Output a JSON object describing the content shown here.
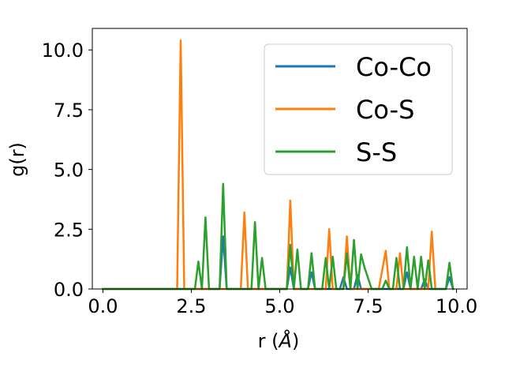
{
  "chart_data": {
    "type": "line",
    "xlabel_main": "r (",
    "xlabel_unit": "Å",
    "xlabel_close": ")",
    "ylabel": "g(r)",
    "xlim": [
      -0.3,
      10.3
    ],
    "ylim": [
      0,
      10.9
    ],
    "xticks": [
      0.0,
      2.5,
      5.0,
      7.5,
      10.0
    ],
    "xtick_labels": [
      "0.0",
      "2.5",
      "5.0",
      "7.5",
      "10.0"
    ],
    "yticks": [
      0.0,
      2.5,
      5.0,
      7.5,
      10.0
    ],
    "ytick_labels": [
      "0.0",
      "2.5",
      "5.0",
      "7.5",
      "10.0"
    ],
    "grid": false,
    "legend_position": "top-right",
    "series": [
      {
        "name": "Co-Co",
        "color": "#1f77b4",
        "x": [
          0.0,
          3.3,
          3.4,
          3.5,
          5.2,
          5.3,
          5.4,
          5.8,
          5.9,
          6.0,
          6.7,
          6.8,
          6.9,
          7.1,
          7.2,
          7.3,
          8.5,
          8.6,
          8.7,
          9.0,
          9.1,
          9.2,
          9.7,
          9.8,
          9.9
        ],
        "y": [
          0.0,
          0.0,
          2.2,
          0.0,
          0.0,
          0.9,
          0.0,
          0.0,
          0.7,
          0.0,
          0.0,
          0.5,
          0.0,
          0.0,
          0.6,
          0.0,
          0.0,
          0.7,
          0.0,
          0.0,
          0.4,
          0.0,
          0.0,
          0.5,
          0.0
        ]
      },
      {
        "name": "Co-S",
        "color": "#ff7f0e",
        "x": [
          0.0,
          2.1,
          2.2,
          2.3,
          3.9,
          4.0,
          4.1,
          5.2,
          5.3,
          5.4,
          6.3,
          6.4,
          6.5,
          6.8,
          6.9,
          7.0,
          7.8,
          8.0,
          8.1,
          8.3,
          8.4,
          8.5,
          9.2,
          9.3,
          9.4
        ],
        "y": [
          0.0,
          0.0,
          10.4,
          0.0,
          0.0,
          3.2,
          0.0,
          0.0,
          3.7,
          0.0,
          0.0,
          2.5,
          0.0,
          0.0,
          2.2,
          0.0,
          0.0,
          1.6,
          0.0,
          0.0,
          1.5,
          0.0,
          0.0,
          2.4,
          0.0
        ]
      },
      {
        "name": "S-S",
        "color": "#2ca02c",
        "x": [
          0.0,
          2.6,
          2.7,
          2.8,
          2.9,
          3.0,
          3.3,
          3.4,
          3.5,
          4.2,
          4.3,
          4.4,
          4.5,
          4.6,
          5.2,
          5.3,
          5.4,
          5.5,
          5.6,
          5.8,
          5.9,
          6.0,
          6.2,
          6.3,
          6.4,
          6.5,
          6.6,
          6.8,
          6.9,
          7.0,
          7.1,
          7.2,
          7.3,
          7.4,
          7.6,
          7.7,
          7.8,
          7.9,
          8.0,
          8.1,
          8.2,
          8.3,
          8.4,
          8.5,
          8.6,
          8.7,
          8.8,
          8.9,
          9.0,
          9.1,
          9.2,
          9.3,
          9.5,
          9.6,
          9.7,
          9.8,
          9.9
        ],
        "y": [
          0.0,
          0.0,
          1.15,
          0.0,
          3.0,
          0.0,
          0.0,
          4.4,
          0.0,
          0.0,
          2.8,
          0.0,
          1.3,
          0.0,
          0.0,
          1.85,
          0.0,
          1.65,
          0.0,
          0.0,
          1.5,
          0.0,
          0.0,
          1.3,
          0.0,
          1.35,
          0.0,
          0.0,
          1.5,
          0.0,
          2.05,
          0.0,
          1.45,
          0.9,
          0.0,
          0.0,
          0.0,
          0.0,
          0.35,
          0.0,
          0.0,
          1.3,
          0.0,
          0.0,
          1.75,
          0.0,
          1.35,
          0.0,
          1.35,
          0.0,
          1.2,
          0.0,
          0.0,
          0.0,
          0.0,
          1.1,
          0.0
        ]
      }
    ]
  }
}
